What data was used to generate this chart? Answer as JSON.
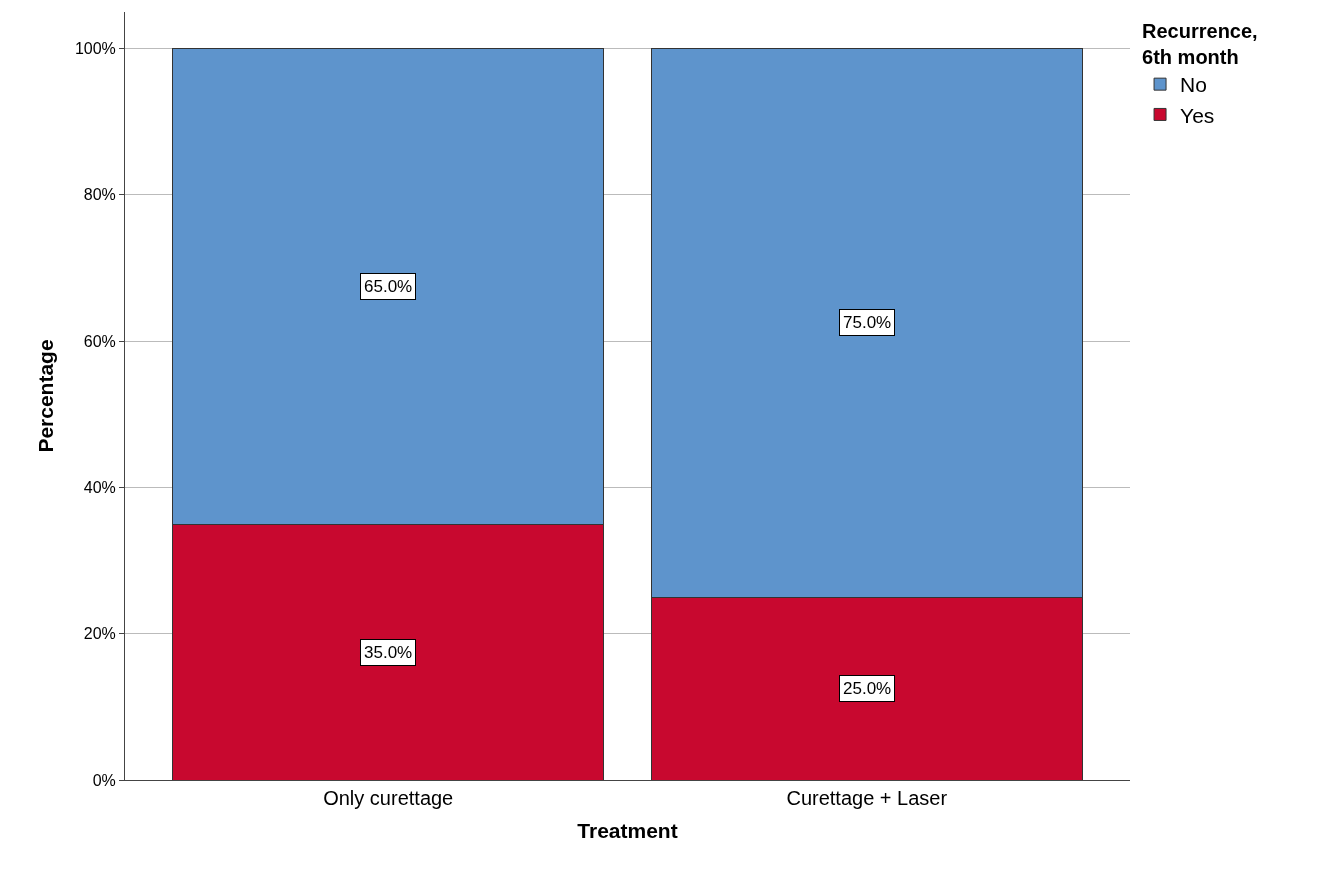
{
  "chart_data": {
    "type": "bar",
    "stacked": true,
    "xlabel": "Treatment",
    "ylabel": "Percentage",
    "legend_title": "Recurrence,\n6th month",
    "legend": "top right",
    "categories": [
      "Only curettage",
      "Curettage + Laser"
    ],
    "series": [
      {
        "name": "Yes",
        "color": "#c8082f",
        "values": [
          35,
          25
        ],
        "value_labels": [
          "35.0%",
          "25.0%"
        ]
      },
      {
        "name": "No",
        "color": "#5e94cc",
        "values": [
          65,
          75
        ],
        "value_labels": [
          "65.0%",
          "75.0%"
        ]
      }
    ],
    "ylim": [
      0,
      105
    ],
    "yticks": [
      {
        "value": 0,
        "label": "0%"
      },
      {
        "value": 20,
        "label": "20%"
      },
      {
        "value": 40,
        "label": "40%"
      },
      {
        "value": 60,
        "label": "60%"
      },
      {
        "value": 80,
        "label": "80%"
      },
      {
        "value": 100,
        "label": "100%"
      }
    ],
    "grid": "y"
  }
}
